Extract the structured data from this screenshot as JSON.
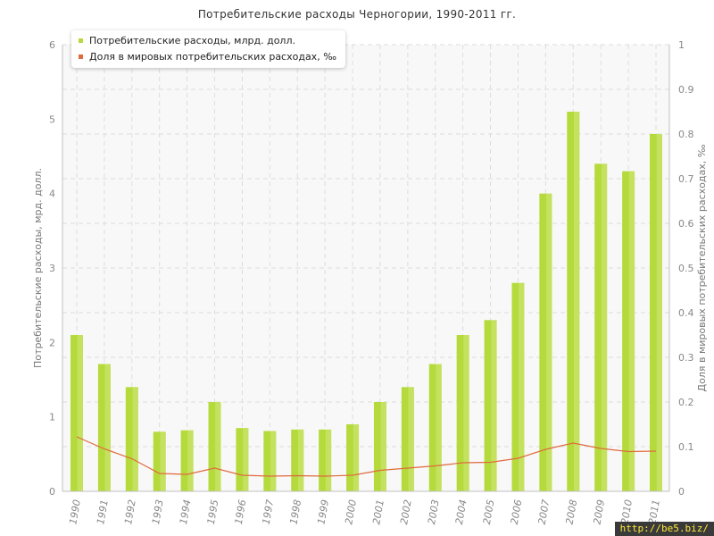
{
  "colors": {
    "bar": "#b5da3c",
    "bar_light": "#cfe776",
    "line": "#e06a3c",
    "grid": "#dddddd",
    "plot_bg": "#f8f8f8",
    "watermark_bg": "#3a3a3a",
    "watermark_fg": "#ffe838"
  },
  "watermark": "http://be5.biz/",
  "chart_data": {
    "type": "bar",
    "title": "Потребительские расходы Черногории, 1990-2011 гг.",
    "categories": [
      "1990",
      "1991",
      "1992",
      "1993",
      "1994",
      "1995",
      "1996",
      "1997",
      "1998",
      "1999",
      "2000",
      "2001",
      "2002",
      "2003",
      "2004",
      "2005",
      "2006",
      "2007",
      "2008",
      "2009",
      "2010",
      "2011"
    ],
    "ylabel": "Потребительские расходы, мрд. долл.",
    "y2label": "Доля в мировых потребительских расходах, ‰",
    "ylim": [
      0,
      6
    ],
    "y2lim": [
      0,
      1
    ],
    "yticks": [
      "0",
      "1",
      "2",
      "3",
      "4",
      "5",
      "6"
    ],
    "y2ticks": [
      "0",
      "0.1",
      "0.2",
      "0.3",
      "0.4",
      "0.5",
      "0.6",
      "0.7",
      "0.8",
      "0.9",
      "1"
    ],
    "grid": true,
    "legend_position": "top-left",
    "series": [
      {
        "name": "Потребительские расходы, млрд. долл.",
        "type": "bar",
        "axis": "left",
        "values": [
          2.1,
          1.71,
          1.4,
          0.8,
          0.82,
          1.2,
          0.85,
          0.81,
          0.83,
          0.83,
          0.9,
          1.2,
          1.4,
          1.71,
          2.1,
          2.3,
          2.8,
          4.0,
          5.1,
          4.4,
          4.3,
          4.8
        ]
      },
      {
        "name": "Доля в мировых потребительских расходах, ‰",
        "type": "line",
        "axis": "right",
        "values": [
          0.122,
          0.095,
          0.073,
          0.04,
          0.038,
          0.052,
          0.036,
          0.034,
          0.035,
          0.034,
          0.036,
          0.047,
          0.052,
          0.057,
          0.064,
          0.065,
          0.074,
          0.094,
          0.108,
          0.096,
          0.089,
          0.09
        ]
      }
    ]
  }
}
